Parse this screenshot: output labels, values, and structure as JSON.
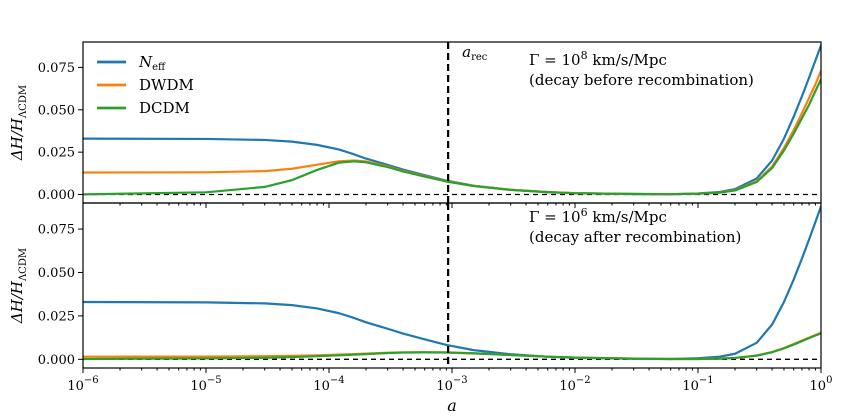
{
  "colors": {
    "N_eff": "#1f77b4",
    "DWDM": "#ff7f0e",
    "DCDM": "#2ca02c",
    "reference_line": "#000000"
  },
  "chart_data": [
    {
      "type": "line",
      "x_scale": "log",
      "xlim": [
        1e-06,
        1
      ],
      "ylim": [
        -0.005,
        0.09
      ],
      "ylabel": "ΔH/H_ΛCDM",
      "xlabel": "",
      "yticks": [
        0.0,
        0.025,
        0.05,
        0.075
      ],
      "ytick_labels": [
        "0.000",
        "0.025",
        "0.050",
        "0.075"
      ],
      "xtick_labels": [],
      "legend": {
        "placement": "top-left",
        "entries": [
          "N_eff",
          "DWDM",
          "DCDM"
        ]
      },
      "annotations": {
        "a_rec_label": "a_rec",
        "line1": "Γ = 10^8 km/s/Mpc",
        "line2": "(decay before recombination)"
      },
      "vline_x": 0.00093,
      "hline_y": 0,
      "x": [
        1e-06,
        1e-05,
        3e-05,
        5e-05,
        8e-05,
        0.00012,
        0.00016,
        0.0002,
        0.0003,
        0.0004,
        0.0006,
        0.0009,
        0.0015,
        0.003,
        0.006,
        0.01,
        0.03,
        0.06,
        0.1,
        0.15,
        0.2,
        0.3,
        0.4,
        0.5,
        0.6,
        0.7,
        0.8,
        0.9,
        1
      ],
      "series": [
        {
          "name": "N_eff",
          "values": [
            0.033,
            0.0328,
            0.0322,
            0.0312,
            0.0293,
            0.0266,
            0.0237,
            0.0212,
            0.0175,
            0.0147,
            0.0114,
            0.0082,
            0.0052,
            0.0028,
            0.0014,
            0.0008,
            0.0003,
            0.0002,
            0.0006,
            0.0015,
            0.0032,
            0.0095,
            0.02,
            0.033,
            0.046,
            0.058,
            0.069,
            0.079,
            0.088
          ]
        },
        {
          "name": "DWDM",
          "values": [
            0.013,
            0.0131,
            0.0138,
            0.0152,
            0.0176,
            0.0196,
            0.0201,
            0.0195,
            0.0166,
            0.0139,
            0.0109,
            0.0079,
            0.0051,
            0.0028,
            0.0014,
            0.0008,
            0.0003,
            0.0002,
            0.0005,
            0.0012,
            0.0026,
            0.0078,
            0.0165,
            0.0275,
            0.038,
            0.048,
            0.057,
            0.065,
            0.073
          ]
        },
        {
          "name": "DCDM",
          "values": [
            0.0001,
            0.0013,
            0.0045,
            0.0085,
            0.0145,
            0.0188,
            0.0196,
            0.019,
            0.0162,
            0.0136,
            0.0106,
            0.0077,
            0.005,
            0.0027,
            0.0014,
            0.0008,
            0.0003,
            0.0002,
            0.0005,
            0.0011,
            0.0024,
            0.0074,
            0.0156,
            0.026,
            0.036,
            0.045,
            0.053,
            0.061,
            0.068
          ]
        }
      ]
    },
    {
      "type": "line",
      "x_scale": "log",
      "xlim": [
        1e-06,
        1
      ],
      "ylim": [
        -0.005,
        0.09
      ],
      "ylabel": "ΔH/H_ΛCDM",
      "xlabel": "a",
      "yticks": [
        0.0,
        0.025,
        0.05,
        0.075
      ],
      "ytick_labels": [
        "0.000",
        "0.025",
        "0.050",
        "0.075"
      ],
      "xticks_exp": [
        -6,
        -5,
        -4,
        -3,
        -2,
        -1,
        0
      ],
      "xtick_base": "10",
      "annotations": {
        "line1": "Γ = 10^6 km/s/Mpc",
        "line2": "(decay after recombination)"
      },
      "vline_x": 0.00093,
      "hline_y": 0,
      "x": [
        1e-06,
        1e-05,
        3e-05,
        5e-05,
        8e-05,
        0.00012,
        0.00016,
        0.0002,
        0.0003,
        0.0004,
        0.0006,
        0.0009,
        0.0015,
        0.003,
        0.006,
        0.01,
        0.03,
        0.06,
        0.1,
        0.15,
        0.2,
        0.3,
        0.4,
        0.5,
        0.6,
        0.7,
        0.8,
        0.9,
        1
      ],
      "series": [
        {
          "name": "N_eff",
          "values": [
            0.033,
            0.0328,
            0.0322,
            0.0312,
            0.0293,
            0.0266,
            0.0238,
            0.0213,
            0.0176,
            0.0148,
            0.0115,
            0.0083,
            0.0053,
            0.0029,
            0.0015,
            0.0009,
            0.0003,
            0.0002,
            0.0006,
            0.0015,
            0.0032,
            0.0095,
            0.02,
            0.033,
            0.046,
            0.058,
            0.069,
            0.079,
            0.088
          ]
        },
        {
          "name": "DWDM",
          "values": [
            0.0015,
            0.0016,
            0.0018,
            0.002,
            0.0023,
            0.0027,
            0.003,
            0.0033,
            0.0038,
            0.004,
            0.0041,
            0.004,
            0.0035,
            0.0025,
            0.0015,
            0.001,
            0.0004,
            0.0002,
            0.0002,
            0.0004,
            0.0008,
            0.0022,
            0.0042,
            0.0065,
            0.0088,
            0.0108,
            0.0125,
            0.014,
            0.0153
          ]
        },
        {
          "name": "DCDM",
          "values": [
            0.0002,
            0.0005,
            0.0009,
            0.0013,
            0.0018,
            0.0023,
            0.0027,
            0.003,
            0.0036,
            0.0039,
            0.004,
            0.0039,
            0.0034,
            0.0025,
            0.0015,
            0.001,
            0.0004,
            0.0002,
            0.0002,
            0.0004,
            0.0008,
            0.0021,
            0.0041,
            0.0063,
            0.0085,
            0.0105,
            0.0122,
            0.0137,
            0.015
          ]
        }
      ]
    }
  ]
}
